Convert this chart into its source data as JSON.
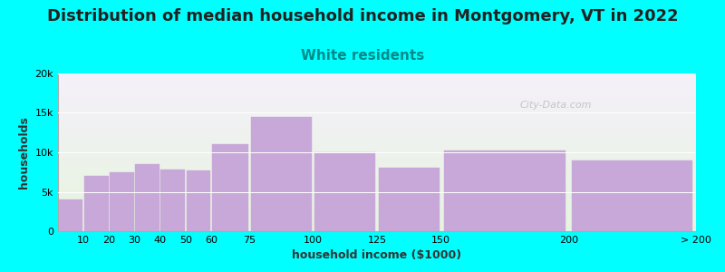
{
  "title": "Distribution of median household income in Montgomery, VT in 2022",
  "subtitle": "White residents",
  "xlabel": "household income ($1000)",
  "ylabel": "households",
  "background_color": "#00FFFF",
  "plot_bg_top_color": "#e6f5df",
  "plot_bg_bottom_color": "#f5f0fa",
  "bar_color": "#c8a8d8",
  "bar_edge_color": "#c8a8d8",
  "bin_edges": [
    0,
    10,
    20,
    30,
    40,
    50,
    60,
    75,
    100,
    125,
    150,
    200,
    250
  ],
  "bin_labels": [
    "10",
    "20",
    "30",
    "40",
    "50",
    "60",
    "75",
    "100",
    "125",
    "150",
    "200",
    "> 200"
  ],
  "values": [
    4000,
    7000,
    7500,
    8500,
    7800,
    7700,
    11000,
    14500,
    10000,
    8000,
    10200,
    9000
  ],
  "ylim": [
    0,
    20000
  ],
  "yticks": [
    0,
    5000,
    10000,
    15000,
    20000
  ],
  "ytick_labels": [
    "0",
    "5k",
    "10k",
    "15k",
    "20k"
  ],
  "title_fontsize": 13,
  "subtitle_fontsize": 11,
  "subtitle_color": "#008B8B",
  "axis_label_fontsize": 9,
  "tick_fontsize": 8,
  "watermark_text": "City-Data.com"
}
